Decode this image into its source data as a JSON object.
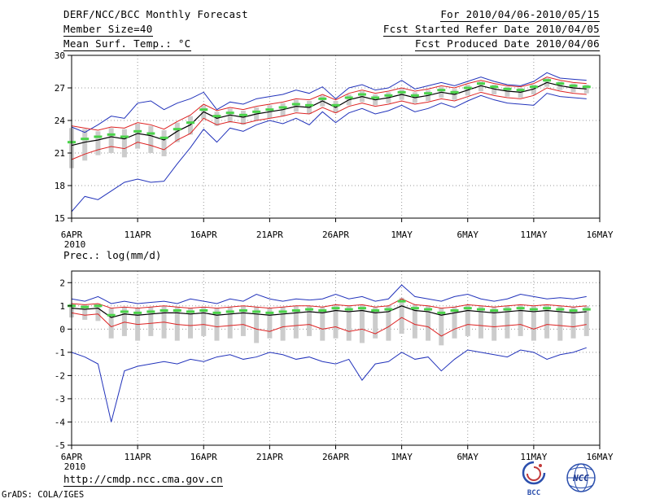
{
  "header": {
    "title": "DERF/NCC/BCC Monthly Forecast",
    "for_range": "For 2010/04/06-2010/05/15",
    "member_size": "Member Size=40",
    "refer_date": "Fcst Started Refer Date 2010/04/05",
    "produced_date": "Fcst Produced Date 2010/04/06"
  },
  "footer": {
    "url": "http://cmdp.ncc.cma.gov.cn",
    "credit": "GrADS: COLA/IGES",
    "logos": {
      "bcc": "BCC",
      "ncc": "NCC"
    }
  },
  "colors": {
    "envelope_blue": "#2233bb",
    "std_red": "#dd2222",
    "median_black": "#000000",
    "mean_green": "#4ad34a",
    "spread_gray": "#cccccc",
    "grid_gray": "#999999"
  },
  "chart_data": [
    {
      "type": "line",
      "title": "Mean Surf. Temp.: °C",
      "ylim": [
        15,
        30
      ],
      "yticks": [
        15,
        18,
        21,
        24,
        27,
        30
      ],
      "x_axis_days": 40,
      "x_tick_positions": [
        0,
        5,
        10,
        15,
        20,
        25,
        30,
        35,
        40
      ],
      "x_tick_labels": [
        "6APR",
        "11APR",
        "16APR",
        "21APR",
        "26APR",
        "1MAY",
        "6MAY",
        "11MAY",
        "16MAY"
      ],
      "year_label": "2010",
      "bars": {
        "name": "member-spread",
        "color": "#cccccc",
        "low": [
          19.6,
          20.3,
          20.8,
          21.0,
          20.6,
          21.4,
          21.0,
          20.7,
          22.0,
          22.7,
          24.1,
          23.5,
          23.8,
          23.6,
          24.0,
          24.2,
          24.4,
          24.8,
          24.6,
          25.3,
          24.7,
          25.4,
          25.7,
          25.4,
          25.6,
          25.9,
          25.6,
          25.8,
          26.1,
          25.9,
          26.3,
          26.7,
          26.4,
          26.2,
          26.1,
          26.4,
          27.1,
          26.8,
          26.6,
          26.5
        ],
        "high": [
          23.3,
          23.2,
          23.0,
          23.3,
          23.2,
          23.7,
          23.5,
          23.1,
          23.8,
          24.4,
          25.4,
          24.8,
          25.1,
          24.9,
          25.2,
          25.4,
          25.6,
          25.9,
          25.8,
          26.3,
          25.8,
          26.4,
          26.7,
          26.4,
          26.6,
          26.9,
          26.6,
          26.8,
          27.1,
          26.9,
          27.3,
          27.6,
          27.3,
          27.1,
          27.0,
          27.3,
          27.9,
          27.6,
          27.4,
          27.3
        ]
      },
      "series": [
        {
          "name": "member-max",
          "color": "#2233bb",
          "width": 1,
          "render": "line",
          "values": [
            23.4,
            22.9,
            23.6,
            24.4,
            24.2,
            25.6,
            25.8,
            25.0,
            25.6,
            26.0,
            26.6,
            25.0,
            25.7,
            25.5,
            26.0,
            26.2,
            26.4,
            26.8,
            26.5,
            27.1,
            26.0,
            27.0,
            27.3,
            26.8,
            27.0,
            27.7,
            26.9,
            27.2,
            27.5,
            27.2,
            27.6,
            28.0,
            27.6,
            27.3,
            27.2,
            27.6,
            28.4,
            27.9,
            27.8,
            27.7
          ]
        },
        {
          "name": "member-min",
          "color": "#2233bb",
          "width": 1,
          "render": "line",
          "values": [
            15.6,
            17.0,
            16.7,
            17.5,
            18.3,
            18.6,
            18.3,
            18.4,
            20.0,
            21.5,
            23.2,
            22.0,
            23.3,
            23.0,
            23.6,
            24.0,
            23.7,
            24.2,
            23.6,
            24.8,
            23.8,
            24.7,
            25.1,
            24.6,
            24.9,
            25.4,
            24.8,
            25.1,
            25.6,
            25.2,
            25.8,
            26.3,
            25.9,
            25.6,
            25.5,
            25.4,
            26.5,
            26.2,
            26.1,
            26.0
          ]
        },
        {
          "name": "plus-spread",
          "color": "#dd2222",
          "width": 1,
          "render": "line",
          "values": [
            23.5,
            23.3,
            23.1,
            23.4,
            23.3,
            23.8,
            23.6,
            23.2,
            23.9,
            24.5,
            25.5,
            24.9,
            25.2,
            25.0,
            25.3,
            25.5,
            25.7,
            26.0,
            25.9,
            26.4,
            25.9,
            26.5,
            26.8,
            26.5,
            26.7,
            27.0,
            26.7,
            26.9,
            27.2,
            27.0,
            27.4,
            27.7,
            27.4,
            27.2,
            27.1,
            27.4,
            28.0,
            27.7,
            27.5,
            27.4
          ]
        },
        {
          "name": "minus-spread",
          "color": "#dd2222",
          "width": 1,
          "render": "line",
          "values": [
            20.4,
            20.9,
            21.3,
            21.6,
            21.4,
            22.0,
            21.7,
            21.3,
            22.2,
            22.8,
            24.2,
            23.6,
            23.9,
            23.7,
            24.0,
            24.2,
            24.4,
            24.7,
            24.6,
            25.2,
            24.7,
            25.3,
            25.6,
            25.3,
            25.5,
            25.8,
            25.5,
            25.7,
            26.0,
            25.8,
            26.2,
            26.6,
            26.3,
            26.1,
            26.0,
            26.3,
            27.0,
            26.7,
            26.5,
            26.4
          ]
        },
        {
          "name": "ensemble-median",
          "color": "#000000",
          "width": 1.2,
          "render": "line",
          "values": [
            21.7,
            22.0,
            22.2,
            22.5,
            22.3,
            22.8,
            22.6,
            22.2,
            23.0,
            23.6,
            24.8,
            24.2,
            24.5,
            24.3,
            24.6,
            24.8,
            25.0,
            25.3,
            25.2,
            25.8,
            25.2,
            25.9,
            26.2,
            25.9,
            26.1,
            26.4,
            26.1,
            26.3,
            26.6,
            26.4,
            26.8,
            27.2,
            26.9,
            26.7,
            26.6,
            26.9,
            27.5,
            27.2,
            27.0,
            26.9
          ]
        },
        {
          "name": "ensemble-mean",
          "color": "#4ad34a",
          "width": 3,
          "render": "ticks",
          "values": [
            22.0,
            22.3,
            22.5,
            22.7,
            22.5,
            23.0,
            22.8,
            22.4,
            23.2,
            23.8,
            25.0,
            24.4,
            24.7,
            24.5,
            24.8,
            25.0,
            25.2,
            25.5,
            25.4,
            26.0,
            25.4,
            26.1,
            26.4,
            26.1,
            26.3,
            26.6,
            26.3,
            26.5,
            26.8,
            26.6,
            27.0,
            27.4,
            27.1,
            26.9,
            26.8,
            27.1,
            27.7,
            27.4,
            27.2,
            27.1
          ]
        }
      ]
    },
    {
      "type": "line",
      "title": "Prec.: log(mm/d)",
      "ylim": [
        -5,
        2.5
      ],
      "yticks": [
        -5,
        -4,
        -3,
        -2,
        -1,
        0,
        1,
        2
      ],
      "x_axis_days": 40,
      "x_tick_positions": [
        0,
        5,
        10,
        15,
        20,
        25,
        30,
        35,
        40
      ],
      "x_tick_labels": [
        "6APR",
        "11APR",
        "16APR",
        "21APR",
        "26APR",
        "1MAY",
        "6MAY",
        "11MAY",
        "16MAY"
      ],
      "year_label": "2010",
      "bars": {
        "name": "member-spread",
        "color": "#cccccc",
        "low": [
          0.5,
          0.4,
          0.35,
          -0.4,
          -0.3,
          -0.5,
          -0.3,
          -0.4,
          -0.5,
          -0.4,
          -0.3,
          -0.5,
          -0.4,
          -0.3,
          -0.6,
          -0.4,
          -0.5,
          -0.4,
          -0.3,
          -0.5,
          -0.4,
          -0.5,
          -0.6,
          -0.4,
          -0.5,
          -0.2,
          -0.4,
          -0.5,
          -0.7,
          -0.4,
          -0.3,
          -0.4,
          -0.5,
          -0.4,
          -0.3,
          -0.5,
          -0.4,
          -0.5,
          -0.4,
          -0.3
        ],
        "high": [
          1.1,
          1.05,
          1.1,
          0.9,
          0.95,
          0.9,
          0.95,
          1.0,
          0.95,
          0.9,
          0.95,
          0.9,
          0.95,
          1.0,
          0.95,
          0.9,
          0.95,
          1.0,
          1.0,
          0.95,
          1.05,
          1.0,
          1.05,
          0.95,
          1.0,
          1.35,
          1.05,
          1.0,
          0.9,
          0.95,
          1.05,
          1.0,
          0.95,
          1.0,
          1.05,
          1.0,
          1.05,
          1.0,
          0.95,
          1.0
        ]
      },
      "series": [
        {
          "name": "member-max",
          "color": "#2233bb",
          "width": 1,
          "render": "line",
          "values": [
            1.3,
            1.2,
            1.4,
            1.1,
            1.2,
            1.1,
            1.15,
            1.2,
            1.1,
            1.3,
            1.2,
            1.1,
            1.3,
            1.2,
            1.5,
            1.3,
            1.2,
            1.3,
            1.25,
            1.3,
            1.5,
            1.3,
            1.4,
            1.2,
            1.3,
            1.9,
            1.4,
            1.3,
            1.2,
            1.4,
            1.5,
            1.3,
            1.2,
            1.3,
            1.5,
            1.4,
            1.3,
            1.35,
            1.3,
            1.4
          ]
        },
        {
          "name": "member-min",
          "color": "#2233bb",
          "width": 1,
          "render": "line",
          "values": [
            -1.0,
            -1.2,
            -1.5,
            -4.0,
            -1.8,
            -1.6,
            -1.5,
            -1.4,
            -1.5,
            -1.3,
            -1.4,
            -1.2,
            -1.1,
            -1.3,
            -1.2,
            -1.0,
            -1.1,
            -1.3,
            -1.2,
            -1.4,
            -1.5,
            -1.3,
            -2.2,
            -1.5,
            -1.4,
            -1.0,
            -1.3,
            -1.2,
            -1.8,
            -1.3,
            -0.9,
            -1.0,
            -1.1,
            -1.2,
            -0.9,
            -1.0,
            -1.3,
            -1.1,
            -1.0,
            -0.8
          ]
        },
        {
          "name": "plus-spread",
          "color": "#dd2222",
          "width": 1,
          "render": "line",
          "values": [
            1.1,
            1.05,
            1.1,
            0.9,
            0.95,
            0.9,
            0.95,
            1.0,
            0.95,
            0.9,
            0.95,
            0.9,
            0.95,
            1.0,
            0.95,
            0.9,
            0.95,
            1.0,
            1.0,
            0.95,
            1.05,
            1.0,
            1.05,
            0.95,
            1.0,
            1.3,
            1.05,
            1.0,
            0.9,
            0.95,
            1.05,
            1.0,
            0.95,
            1.0,
            1.05,
            1.0,
            1.05,
            1.0,
            0.95,
            1.0
          ]
        },
        {
          "name": "minus-spread",
          "color": "#dd2222",
          "width": 1,
          "render": "line",
          "values": [
            0.7,
            0.6,
            0.65,
            0.1,
            0.3,
            0.2,
            0.25,
            0.3,
            0.2,
            0.15,
            0.2,
            0.1,
            0.15,
            0.2,
            0.0,
            -0.1,
            0.1,
            0.15,
            0.2,
            0.0,
            0.1,
            -0.1,
            0.0,
            -0.2,
            0.1,
            0.5,
            0.2,
            0.1,
            -0.3,
            0.0,
            0.2,
            0.15,
            0.1,
            0.15,
            0.2,
            0.0,
            0.2,
            0.15,
            0.1,
            0.2
          ]
        },
        {
          "name": "ensemble-median",
          "color": "#000000",
          "width": 1.2,
          "render": "line",
          "values": [
            0.9,
            0.85,
            0.9,
            0.5,
            0.65,
            0.6,
            0.65,
            0.7,
            0.7,
            0.65,
            0.7,
            0.6,
            0.65,
            0.7,
            0.65,
            0.6,
            0.65,
            0.7,
            0.75,
            0.7,
            0.8,
            0.75,
            0.8,
            0.7,
            0.75,
            1.0,
            0.8,
            0.75,
            0.6,
            0.7,
            0.8,
            0.75,
            0.7,
            0.75,
            0.8,
            0.75,
            0.8,
            0.75,
            0.7,
            0.75
          ]
        },
        {
          "name": "ensemble-mean",
          "color": "#4ad34a",
          "width": 3,
          "render": "ticks",
          "values": [
            1.0,
            0.95,
            1.0,
            0.6,
            0.75,
            0.7,
            0.75,
            0.8,
            0.8,
            0.75,
            0.8,
            0.7,
            0.75,
            0.8,
            0.75,
            0.7,
            0.75,
            0.8,
            0.85,
            0.8,
            0.9,
            0.85,
            0.9,
            0.8,
            0.85,
            1.2,
            0.9,
            0.85,
            0.7,
            0.8,
            0.9,
            0.85,
            0.8,
            0.85,
            0.9,
            0.85,
            0.9,
            0.85,
            0.8,
            0.85
          ]
        }
      ]
    }
  ]
}
